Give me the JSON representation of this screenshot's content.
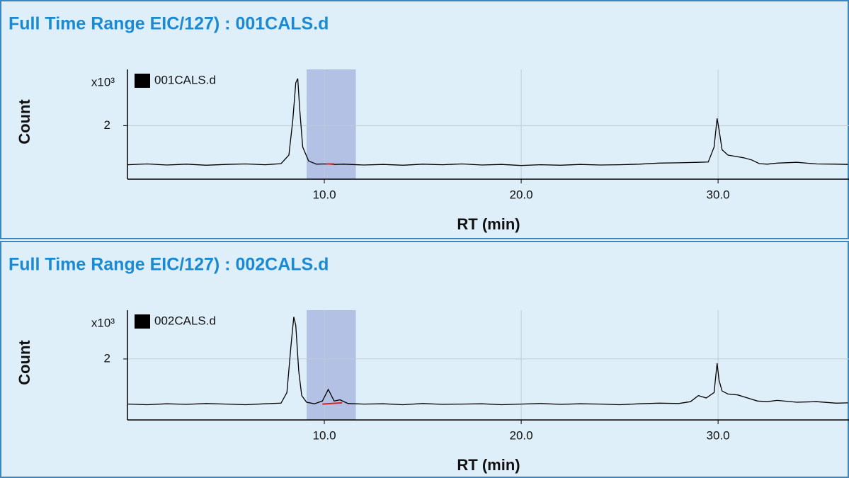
{
  "chart_data": [
    {
      "type": "line",
      "title": "Full Time Range EIC/127) : 001CALS.d",
      "xlabel": "RT (min)",
      "ylabel": "Count",
      "y_scale_label": "x10³",
      "xlim": [
        0,
        36.65
      ],
      "ylim": [
        0,
        4.1
      ],
      "xticks": [
        {
          "value": 10,
          "label": "10.0"
        },
        {
          "value": 20,
          "label": "20.0"
        },
        {
          "value": 30,
          "label": "30.0"
        }
      ],
      "yticks": [
        2
      ],
      "grid": true,
      "highlight": {
        "range": [
          9.1,
          11.6
        ],
        "color": "#8c9bd4"
      },
      "integration_baseline": {
        "x": [
          10.1,
          10.5
        ],
        "values": [
          0.57,
          0.57
        ],
        "color": "#e02020"
      },
      "x": [
        0,
        1,
        2,
        3,
        4,
        5,
        6,
        7,
        7.8,
        8.2,
        8.4,
        8.55,
        8.65,
        8.75,
        8.9,
        9.2,
        9.6,
        10,
        10.5,
        11,
        12,
        13,
        14,
        15,
        16,
        17,
        18,
        19,
        20,
        21,
        22,
        23,
        24,
        25,
        26,
        27,
        28,
        29,
        29.5,
        29.8,
        29.95,
        30.05,
        30.2,
        30.5,
        30.9,
        31.3,
        31.7,
        32.1,
        32.5,
        33,
        34,
        35,
        36,
        36.6
      ],
      "series": [
        {
          "name": "001CALS.d",
          "color": "#000000",
          "values": [
            0.54,
            0.57,
            0.53,
            0.56,
            0.52,
            0.55,
            0.57,
            0.54,
            0.58,
            0.9,
            2.2,
            3.6,
            3.76,
            2.6,
            1.2,
            0.68,
            0.56,
            0.57,
            0.55,
            0.56,
            0.53,
            0.55,
            0.52,
            0.56,
            0.54,
            0.57,
            0.53,
            0.55,
            0.51,
            0.54,
            0.52,
            0.55,
            0.53,
            0.54,
            0.56,
            0.6,
            0.61,
            0.63,
            0.64,
            1.2,
            2.27,
            1.85,
            1.1,
            0.9,
            0.85,
            0.8,
            0.72,
            0.58,
            0.56,
            0.6,
            0.63,
            0.57,
            0.56,
            0.55
          ]
        }
      ]
    },
    {
      "type": "line",
      "title": "Full Time Range EIC/127) : 002CALS.d",
      "xlabel": "RT (min)",
      "ylabel": "Count",
      "y_scale_label": "x10³",
      "xlim": [
        0,
        36.65
      ],
      "ylim": [
        0,
        3.6
      ],
      "xticks": [
        {
          "value": 10,
          "label": "10.0"
        },
        {
          "value": 20,
          "label": "20.0"
        },
        {
          "value": 30,
          "label": "30.0"
        }
      ],
      "yticks": [
        2
      ],
      "grid": true,
      "highlight": {
        "range": [
          9.1,
          11.6
        ],
        "color": "#8c9bd4"
      },
      "integration_baseline": {
        "x": [
          9.9,
          10.9
        ],
        "values": [
          0.52,
          0.56
        ],
        "color": "#e02020"
      },
      "x": [
        0,
        1,
        2,
        3,
        4,
        5,
        6,
        7,
        7.8,
        8.1,
        8.3,
        8.45,
        8.55,
        8.7,
        8.85,
        9.1,
        9.5,
        9.9,
        10.2,
        10.5,
        10.8,
        11.2,
        12,
        13,
        14,
        15,
        16,
        17,
        18,
        19,
        20,
        21,
        22,
        23,
        24,
        25,
        26,
        27,
        28,
        28.6,
        29,
        29.4,
        29.8,
        29.95,
        30.05,
        30.2,
        30.5,
        31,
        31.5,
        32,
        32.5,
        33,
        34,
        35,
        36,
        36.6
      ],
      "series": [
        {
          "name": "002CALS.d",
          "color": "#000000",
          "values": [
            0.52,
            0.5,
            0.53,
            0.51,
            0.54,
            0.52,
            0.5,
            0.53,
            0.55,
            0.9,
            2.4,
            3.38,
            3.1,
            1.6,
            0.8,
            0.58,
            0.53,
            0.62,
            1.0,
            0.62,
            0.66,
            0.54,
            0.52,
            0.53,
            0.5,
            0.54,
            0.51,
            0.52,
            0.53,
            0.5,
            0.52,
            0.54,
            0.51,
            0.53,
            0.52,
            0.5,
            0.53,
            0.55,
            0.54,
            0.6,
            0.8,
            0.72,
            0.9,
            1.86,
            1.3,
            0.95,
            0.85,
            0.82,
            0.72,
            0.62,
            0.6,
            0.64,
            0.58,
            0.6,
            0.55,
            0.56
          ]
        }
      ]
    }
  ]
}
